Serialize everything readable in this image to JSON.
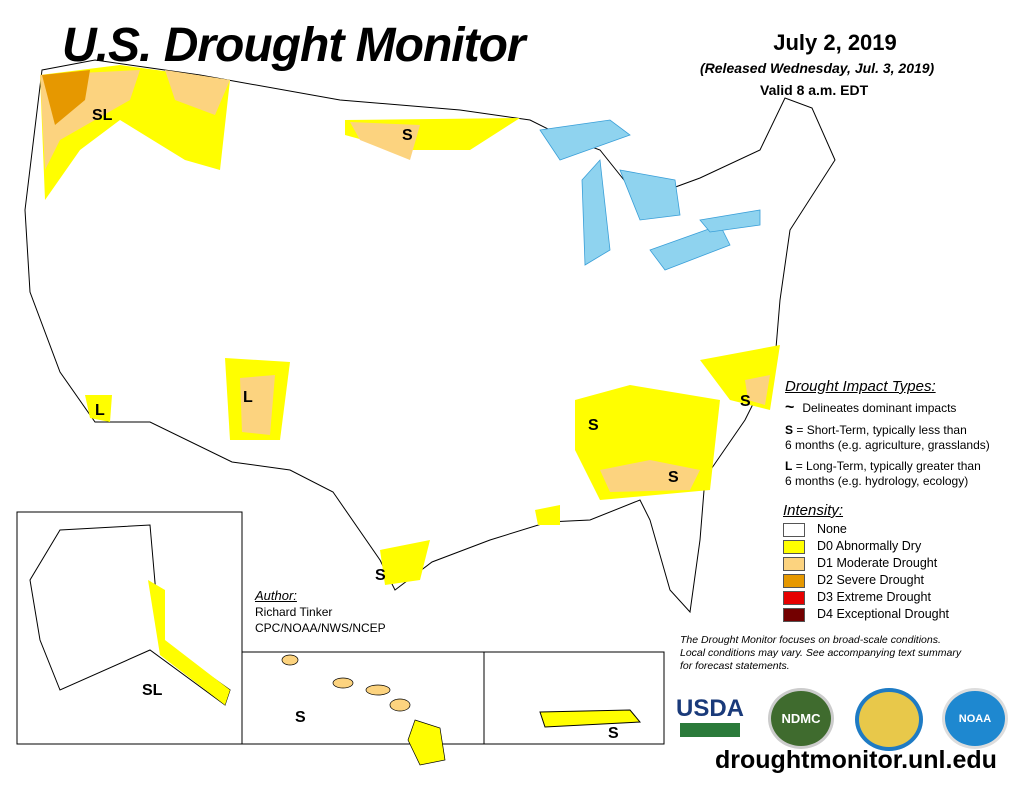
{
  "header": {
    "title": "U.S. Drought Monitor",
    "date": "July 2, 2019",
    "released": "(Released Wednesday, Jul. 3, 2019)",
    "valid": "Valid 8 a.m. EDT"
  },
  "impact_types": {
    "heading": "Drought Impact Types:",
    "delineates": "Delineates dominant impacts",
    "s_key": "S",
    "s_text": "= Short-Term, typically less than",
    "s_text2": "6 months (e.g. agriculture, grasslands)",
    "l_key": "L",
    "l_text": "= Long-Term, typically greater than",
    "l_text2": "6 months (e.g. hydrology, ecology)"
  },
  "intensity": {
    "heading": "Intensity:",
    "items": [
      {
        "label": "None",
        "color": "#ffffff"
      },
      {
        "label": "D0 Abnormally Dry",
        "color": "#ffff00"
      },
      {
        "label": "D1 Moderate Drought",
        "color": "#fcd37f"
      },
      {
        "label": "D2 Severe Drought",
        "color": "#e69800"
      },
      {
        "label": "D3 Extreme Drought",
        "color": "#e60000"
      },
      {
        "label": "D4 Exceptional Drought",
        "color": "#730000"
      }
    ]
  },
  "note": [
    "The Drought Monitor focuses on broad-scale conditions.",
    "Local conditions may vary. See accompanying text summary",
    "for forecast statements."
  ],
  "author": {
    "heading": "Author:",
    "name": "Richard Tinker",
    "org": "CPC/NOAA/NWS/NCEP"
  },
  "map_labels": {
    "wa": "SL",
    "ca": "L",
    "nm": "L",
    "mn": "S",
    "ms": "S",
    "ga": "S",
    "nc": "S",
    "tx": "S",
    "ak": "SL",
    "hi": "S",
    "pr": "S"
  },
  "logos": {
    "usda": "USDA",
    "ndmc": "NDMC",
    "noaa": "NOAA"
  },
  "url": "droughtmonitor.unl.edu"
}
